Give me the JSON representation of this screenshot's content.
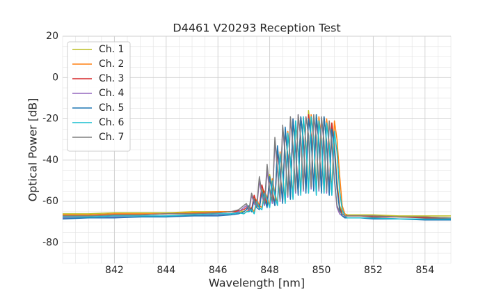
{
  "chart_data": {
    "type": "line",
    "title": "D4461 V20293 Reception Test",
    "xlabel": "Wavelength [nm]",
    "ylabel": "Optical Power [dB]",
    "xlim": [
      840,
      855
    ],
    "ylim": [
      -90,
      20
    ],
    "xticks": [
      842,
      844,
      846,
      848,
      850,
      852,
      854
    ],
    "yticks": [
      -80,
      -60,
      -40,
      -20,
      0,
      20
    ],
    "xminorticks": [
      840,
      840.5,
      841,
      841.5,
      842,
      842.5,
      843,
      843.5,
      844,
      844.5,
      845,
      845.5,
      846,
      846.5,
      847,
      847.5,
      848,
      848.5,
      849,
      849.5,
      850,
      850.5,
      851,
      851.5,
      852,
      852.5,
      853,
      853.5,
      854,
      854.5,
      855
    ],
    "yminorticks": [
      -90,
      -85,
      -80,
      -75,
      -70,
      -65,
      -60,
      -55,
      -50,
      -45,
      -40,
      -35,
      -30,
      -25,
      -20,
      -15,
      -10,
      -5,
      0,
      5,
      10,
      15,
      20
    ],
    "grid": true,
    "legend": "upper left",
    "x": [
      840,
      841,
      842,
      843,
      844,
      845,
      846,
      846.5,
      846.8,
      847.0,
      847.1,
      847.2,
      847.3,
      847.4,
      847.5,
      847.6,
      847.7,
      847.8,
      847.9,
      848.0,
      848.1,
      848.2,
      848.3,
      848.4,
      848.5,
      848.6,
      848.7,
      848.8,
      848.9,
      849.0,
      849.1,
      849.2,
      849.3,
      849.4,
      849.5,
      849.6,
      849.7,
      849.8,
      849.9,
      850.0,
      850.1,
      850.2,
      850.3,
      850.4,
      850.5,
      850.6,
      850.7,
      850.8,
      850.9,
      851.0,
      851.5,
      852,
      853,
      854,
      855
    ],
    "series": [
      {
        "name": "Ch. 1",
        "color": "#bcbd22",
        "values": [
          -66,
          -66,
          -65.5,
          -65.5,
          -65.5,
          -65,
          -65,
          -65,
          -64.5,
          -65,
          -64,
          -62,
          -65,
          -58,
          -62,
          -63,
          -54,
          -58,
          -62,
          -47,
          -55,
          -61,
          -34,
          -45,
          -60,
          -25,
          -38,
          -58,
          -21,
          -34,
          -56,
          -19,
          -30,
          -55,
          -16,
          -28,
          -54,
          -18,
          -30,
          -55,
          -19,
          -32,
          -56,
          -22,
          -32,
          -50,
          -62,
          -65,
          -66,
          -66.5,
          -66.5,
          -66.5,
          -67,
          -67,
          -67
        ]
      },
      {
        "name": "Ch. 2",
        "color": "#ff7f0e",
        "values": [
          -66.5,
          -66.5,
          -66,
          -66,
          -66,
          -65.5,
          -65,
          -65,
          -65,
          -66,
          -65,
          -64,
          -63,
          -65,
          -59,
          -62,
          -63,
          -55,
          -58,
          -62,
          -49,
          -56,
          -61,
          -36,
          -46,
          -60,
          -26,
          -40,
          -58,
          -22,
          -35,
          -56,
          -20,
          -31,
          -55,
          -18,
          -29,
          -54,
          -19,
          -30,
          -55,
          -20,
          -32,
          -56,
          -21,
          -30,
          -47,
          -62,
          -66,
          -67,
          -67,
          -67,
          -67.5,
          -67.5,
          -68
        ]
      },
      {
        "name": "Ch. 3",
        "color": "#d62728",
        "values": [
          -67,
          -67,
          -66.5,
          -66.5,
          -66,
          -66,
          -65.5,
          -65,
          -64.5,
          -64,
          -63,
          -63,
          -64,
          -57,
          -61,
          -63,
          -52,
          -57,
          -61,
          -49,
          -55,
          -62,
          -36,
          -46,
          -60,
          -26,
          -38,
          -58,
          -20,
          -33,
          -56,
          -19,
          -30,
          -55,
          -18,
          -28,
          -54,
          -20,
          -31,
          -55,
          -19,
          -31,
          -56,
          -22,
          -33,
          -52,
          -63,
          -66,
          -67,
          -67,
          -67,
          -67.5,
          -67.5,
          -68,
          -68
        ]
      },
      {
        "name": "Ch. 4",
        "color": "#9467bd",
        "values": [
          -68,
          -68,
          -67.5,
          -67.5,
          -67,
          -67,
          -66.5,
          -66,
          -65,
          -63,
          -62,
          -65,
          -57,
          -61,
          -63,
          -50,
          -57,
          -62,
          -45,
          -55,
          -61,
          -31,
          -45,
          -60,
          -24,
          -38,
          -58,
          -20,
          -34,
          -56,
          -18,
          -30,
          -55,
          -19,
          -28,
          -54,
          -19,
          -30,
          -55,
          -20,
          -32,
          -56,
          -22,
          -32,
          -50,
          -63,
          -66,
          -67,
          -67.5,
          -68,
          -68,
          -68,
          -68.5,
          -68.5,
          -69
        ]
      },
      {
        "name": "Ch. 5",
        "color": "#1f77b4",
        "values": [
          -68.5,
          -68,
          -68,
          -67.5,
          -67.5,
          -67,
          -67,
          -66.5,
          -66,
          -65,
          -64,
          -62,
          -65,
          -59,
          -63,
          -64,
          -55,
          -59,
          -63,
          -48,
          -57,
          -62,
          -33,
          -47,
          -61,
          -24,
          -39,
          -59,
          -20,
          -35,
          -57,
          -19,
          -31,
          -56,
          -20,
          -29,
          -55,
          -18,
          -31,
          -56,
          -19,
          -32,
          -57,
          -25,
          -35,
          -54,
          -64,
          -67,
          -68,
          -68,
          -68,
          -68.5,
          -68.5,
          -69,
          -69
        ]
      },
      {
        "name": "Ch. 6",
        "color": "#17becf",
        "values": [
          -67.5,
          -67.5,
          -67,
          -67,
          -67,
          -66.5,
          -66,
          -66,
          -65.5,
          -66,
          -65,
          -65,
          -64,
          -66,
          -60,
          -63,
          -64,
          -56,
          -59,
          -63,
          -50,
          -57,
          -62,
          -37,
          -47,
          -61,
          -27,
          -40,
          -59,
          -21,
          -35,
          -57,
          -19,
          -32,
          -56,
          -19,
          -30,
          -57,
          -21,
          -31,
          -56,
          -22,
          -33,
          -57,
          -26,
          -36,
          -55,
          -64,
          -67,
          -68,
          -68,
          -68,
          -68.5,
          -68.5,
          -68.5
        ]
      },
      {
        "name": "Ch. 7",
        "color": "#7f7f7f",
        "values": [
          -67,
          -67,
          -66.5,
          -66.5,
          -66,
          -66,
          -65.5,
          -65,
          -64,
          -62,
          -61,
          -64,
          -56,
          -60,
          -62,
          -48,
          -56,
          -61,
          -42,
          -54,
          -60,
          -29,
          -44,
          -59,
          -23,
          -37,
          -57,
          -19,
          -33,
          -55,
          -18,
          -29,
          -54,
          -19,
          -28,
          -53,
          -18,
          -29,
          -54,
          -19,
          -31,
          -55,
          -21,
          -31,
          -49,
          -62,
          -65,
          -66,
          -67,
          -67,
          -67,
          -67,
          -67.5,
          -67.5,
          -68
        ]
      }
    ]
  }
}
